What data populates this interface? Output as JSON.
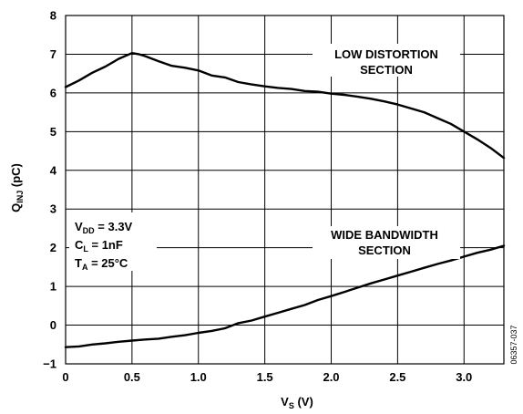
{
  "chart_data": {
    "type": "line",
    "xlabel": {
      "main": "V",
      "sub": "S",
      "unit": " (V)"
    },
    "ylabel": {
      "main": "Q",
      "sub": "INJ",
      "unit": " (pC)"
    },
    "xlim": [
      0,
      3.3
    ],
    "ylim": [
      -1,
      8
    ],
    "x_ticks": [
      "0",
      "0.5",
      "1.0",
      "1.5",
      "2.0",
      "2.5",
      "3.0"
    ],
    "y_ticks": [
      "−1",
      "0",
      "1",
      "2",
      "3",
      "4",
      "5",
      "6",
      "7",
      "8"
    ],
    "grid": true,
    "series": [
      {
        "name": "LOW DISTORTION SECTION",
        "x": [
          0,
          0.1,
          0.2,
          0.3,
          0.4,
          0.5,
          0.55,
          0.6,
          0.7,
          0.8,
          0.9,
          1.0,
          1.1,
          1.2,
          1.3,
          1.4,
          1.5,
          1.6,
          1.7,
          1.8,
          1.9,
          2.0,
          2.1,
          2.2,
          2.3,
          2.4,
          2.5,
          2.6,
          2.7,
          2.8,
          2.9,
          3.0,
          3.1,
          3.2,
          3.3
        ],
        "y": [
          6.15,
          6.32,
          6.52,
          6.68,
          6.88,
          7.03,
          7.0,
          6.95,
          6.82,
          6.7,
          6.65,
          6.58,
          6.45,
          6.4,
          6.28,
          6.22,
          6.17,
          6.13,
          6.1,
          6.05,
          6.03,
          5.98,
          5.95,
          5.9,
          5.85,
          5.78,
          5.7,
          5.6,
          5.5,
          5.35,
          5.2,
          5.0,
          4.8,
          4.58,
          4.32
        ]
      },
      {
        "name": "WIDE BANDWIDTH SECTION",
        "x": [
          0,
          0.1,
          0.2,
          0.3,
          0.4,
          0.5,
          0.6,
          0.7,
          0.8,
          0.9,
          1.0,
          1.1,
          1.2,
          1.3,
          1.4,
          1.5,
          1.6,
          1.7,
          1.8,
          1.9,
          2.0,
          2.1,
          2.2,
          2.3,
          2.4,
          2.5,
          2.6,
          2.7,
          2.8,
          2.9,
          3.0,
          3.1,
          3.2,
          3.3
        ],
        "y": [
          -0.57,
          -0.55,
          -0.5,
          -0.47,
          -0.43,
          -0.4,
          -0.37,
          -0.35,
          -0.3,
          -0.26,
          -0.2,
          -0.15,
          -0.08,
          0.05,
          0.12,
          0.22,
          0.32,
          0.42,
          0.52,
          0.65,
          0.75,
          0.86,
          0.97,
          1.08,
          1.18,
          1.28,
          1.38,
          1.48,
          1.58,
          1.67,
          1.77,
          1.87,
          1.95,
          2.05
        ]
      }
    ],
    "annotations": {
      "low_distortion": [
        "LOW DISTORTION",
        "SECTION"
      ],
      "wide_bandwidth": [
        "WIDE BANDWIDTH",
        "SECTION"
      ],
      "conditions": [
        {
          "main": "V",
          "sub": "DD",
          "rest": " = 3.3V"
        },
        {
          "main": "C",
          "sub": "L",
          "rest": " = 1nF"
        },
        {
          "main": "T",
          "sub": "A",
          "rest": " = 25°C"
        }
      ],
      "figure_id": "06357-037"
    }
  }
}
